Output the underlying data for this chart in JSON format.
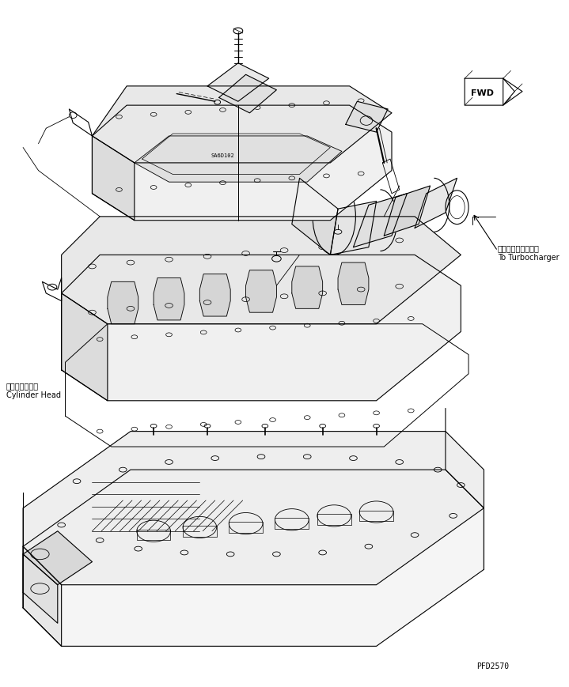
{
  "background_color": "#ffffff",
  "line_color": "#000000",
  "title_text": "",
  "fwd_label": "FWD",
  "cylinder_head_jp": "シリンダヘッド",
  "cylinder_head_en": "Cylinder Head",
  "turbocharger_jp": "ターボチャージャヘ",
  "turbocharger_en": "To Turbocharger",
  "part_number": "PFD2570",
  "fig_width": 7.19,
  "fig_height": 8.7,
  "dpi": 100
}
